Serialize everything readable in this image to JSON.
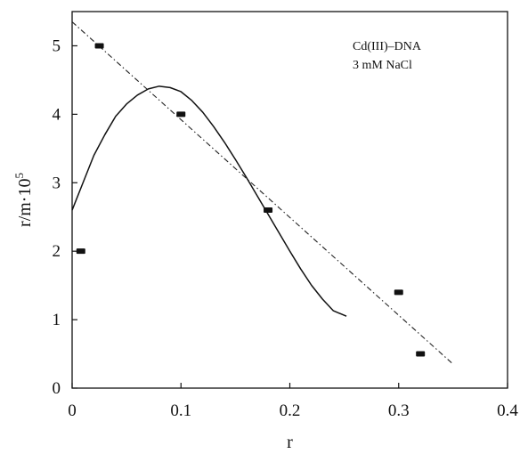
{
  "chart_data": {
    "type": "scatter",
    "xlabel": "r",
    "ylabel": "r/m·10",
    "ylabel_superscript": "5",
    "xlim": [
      0,
      0.4
    ],
    "ylim": [
      0,
      5.5
    ],
    "x_ticks": [
      0,
      0.1,
      0.2,
      0.3,
      0.4
    ],
    "x_tick_labels": [
      "0",
      "0.1",
      "0.2",
      "0.3",
      "0.4"
    ],
    "y_ticks": [
      0,
      1,
      2,
      3,
      4,
      5
    ],
    "y_tick_labels": [
      "0",
      "1",
      "2",
      "3",
      "4",
      "5"
    ],
    "grid": false,
    "annotations": [
      "Cd(III)–DNA",
      "3 mM NaCl"
    ],
    "series": [
      {
        "kind": "points",
        "x": [
          0.008,
          0.025,
          0.1,
          0.18,
          0.3,
          0.32
        ],
        "y": [
          2.0,
          5.0,
          4.0,
          2.6,
          1.4,
          0.5
        ]
      },
      {
        "kind": "dash-dot line",
        "x": [
          0,
          0.35
        ],
        "y": [
          5.35,
          0.35
        ]
      },
      {
        "kind": "solid curve",
        "x": [
          0,
          0.01,
          0.02,
          0.03,
          0.04,
          0.05,
          0.06,
          0.07,
          0.08,
          0.09,
          0.1,
          0.11,
          0.12,
          0.13,
          0.14,
          0.15,
          0.16,
          0.17,
          0.18,
          0.19,
          0.2,
          0.21,
          0.22,
          0.23,
          0.24,
          0.252
        ],
        "y": [
          2.6,
          3.0,
          3.4,
          3.7,
          3.97,
          4.15,
          4.28,
          4.37,
          4.41,
          4.39,
          4.33,
          4.2,
          4.03,
          3.82,
          3.59,
          3.34,
          3.08,
          2.81,
          2.54,
          2.27,
          2.0,
          1.74,
          1.5,
          1.3,
          1.13,
          1.05
        ]
      }
    ]
  }
}
